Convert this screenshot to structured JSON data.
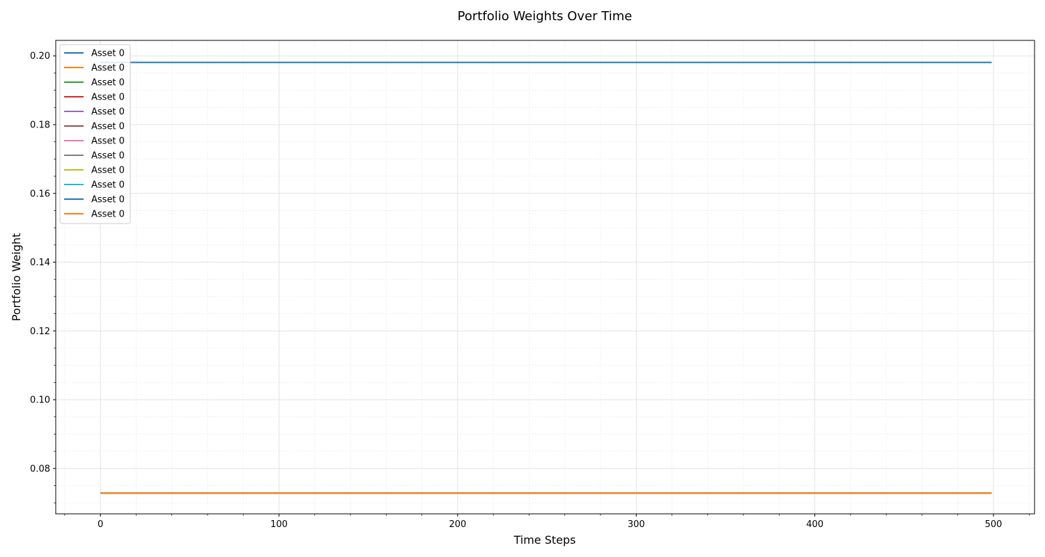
{
  "chart_data": {
    "type": "line",
    "title": "Portfolio Weights Over Time",
    "xlabel": "Time Steps",
    "ylabel": "Portfolio Weight",
    "xlim": [
      -25,
      523
    ],
    "ylim": [
      0.0668,
      0.2045
    ],
    "xticks": [
      0,
      100,
      200,
      300,
      400,
      500
    ],
    "yticks": [
      0.08,
      0.1,
      0.12,
      0.14,
      0.16,
      0.18,
      0.2
    ],
    "x_range": [
      0,
      499
    ],
    "grid": true,
    "legend": "upper left",
    "series": [
      {
        "name": "Asset 0",
        "color": "#1f77b4",
        "value": 0.0728
      },
      {
        "name": "Asset 0",
        "color": "#ff7f0e",
        "value": 0.0728
      },
      {
        "name": "Asset 0",
        "color": "#2ca02c",
        "value": 0.0728
      },
      {
        "name": "Asset 0",
        "color": "#d62728",
        "value": 0.0728
      },
      {
        "name": "Asset 0",
        "color": "#9467bd",
        "value": 0.0728
      },
      {
        "name": "Asset 0",
        "color": "#8c564b",
        "value": 0.0728
      },
      {
        "name": "Asset 0",
        "color": "#e377c2",
        "value": 0.0728
      },
      {
        "name": "Asset 0",
        "color": "#7f7f7f",
        "value": 0.0728
      },
      {
        "name": "Asset 0",
        "color": "#bcbd22",
        "value": 0.0728
      },
      {
        "name": "Asset 0",
        "color": "#17becf",
        "value": 0.0728
      },
      {
        "name": "Asset 0",
        "color": "#1f77b4",
        "value": 0.1981
      },
      {
        "name": "Asset 0",
        "color": "#ff7f0e",
        "value": 0.0728
      }
    ]
  }
}
